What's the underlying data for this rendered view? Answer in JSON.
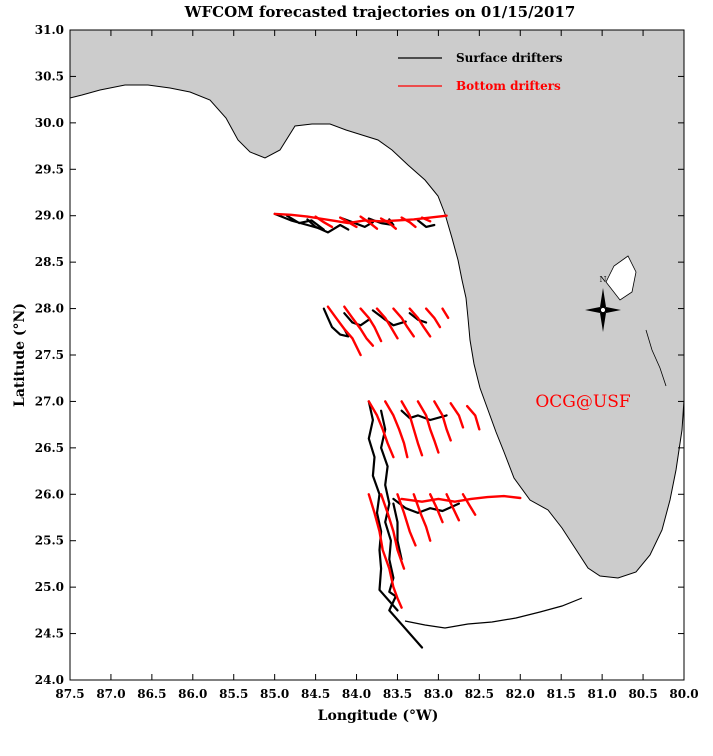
{
  "title": "WFCOM forecasted trajectories on 01/15/2017",
  "xlabel": "Longitude (°W)",
  "ylabel": "Latitude (°N)",
  "xlim": [
    87.5,
    80.0
  ],
  "ylim": [
    24.0,
    31.0
  ],
  "x_ticks": [
    "87.5",
    "87.0",
    "86.5",
    "86.0",
    "85.5",
    "85.0",
    "84.5",
    "84.0",
    "83.5",
    "83.0",
    "82.5",
    "82.0",
    "81.5",
    "81.0",
    "80.5",
    "80.0"
  ],
  "y_ticks": [
    "24.0",
    "24.5",
    "25.0",
    "25.5",
    "26.0",
    "26.5",
    "27.0",
    "27.5",
    "28.0",
    "28.5",
    "29.0",
    "29.5",
    "30.0",
    "30.5",
    "31.0"
  ],
  "legend": {
    "surface_label": "Surface drifters",
    "bottom_label": "Bottom drifters",
    "position": "top-right"
  },
  "credit": "OCG@USF",
  "compass_label": "N",
  "colors": {
    "surface": "#000000",
    "bottom": "#ff0000",
    "land": "#cccccc",
    "ocean": "#ffffff"
  },
  "chart_data": {
    "type": "map",
    "title": "WFCOM forecasted trajectories on 01/15/2017",
    "xlabel": "Longitude (°W)",
    "ylabel": "Latitude (°N)",
    "xlim": [
      87.5,
      80.0
    ],
    "ylim": [
      24.0,
      31.0
    ],
    "grid": false,
    "legend_position": "top-right",
    "series": [
      {
        "name": "Surface drifters",
        "color": "#000000",
        "tracks": [
          [
            [
              85.0,
              29.02
            ],
            [
              84.8,
              28.95
            ],
            [
              84.6,
              28.9
            ],
            [
              84.4,
              28.85
            ],
            [
              84.55,
              28.95
            ],
            [
              84.7,
              28.92
            ],
            [
              84.85,
              29.0
            ]
          ],
          [
            [
              84.6,
              28.96
            ],
            [
              84.5,
              28.88
            ],
            [
              84.35,
              28.82
            ],
            [
              84.2,
              28.9
            ],
            [
              84.1,
              28.85
            ]
          ],
          [
            [
              84.2,
              28.98
            ],
            [
              84.05,
              28.93
            ],
            [
              83.9,
              28.88
            ],
            [
              83.8,
              28.93
            ]
          ],
          [
            [
              83.85,
              28.97
            ],
            [
              83.7,
              28.92
            ],
            [
              83.55,
              28.9
            ],
            [
              83.6,
              28.96
            ]
          ],
          [
            [
              83.25,
              28.95
            ],
            [
              83.15,
              28.88
            ],
            [
              83.05,
              28.9
            ]
          ],
          [
            [
              84.4,
              28.0
            ],
            [
              84.35,
              27.9
            ],
            [
              84.3,
              27.8
            ],
            [
              84.2,
              27.72
            ],
            [
              84.1,
              27.7
            ],
            [
              84.15,
              27.78
            ]
          ],
          [
            [
              84.15,
              27.95
            ],
            [
              84.05,
              27.85
            ],
            [
              83.95,
              27.82
            ],
            [
              83.85,
              27.88
            ]
          ],
          [
            [
              83.8,
              27.98
            ],
            [
              83.65,
              27.88
            ],
            [
              83.55,
              27.82
            ],
            [
              83.4,
              27.86
            ]
          ],
          [
            [
              83.35,
              27.95
            ],
            [
              83.25,
              27.88
            ],
            [
              83.15,
              27.85
            ]
          ],
          [
            [
              83.85,
              27.0
            ],
            [
              83.8,
              26.8
            ],
            [
              83.85,
              26.6
            ],
            [
              83.78,
              26.4
            ],
            [
              83.8,
              26.2
            ],
            [
              83.72,
              26.0
            ],
            [
              83.75,
              25.8
            ],
            [
              83.7,
              25.6
            ],
            [
              83.72,
              25.4
            ],
            [
              83.7,
              25.2
            ],
            [
              83.72,
              24.97
            ],
            [
              83.5,
              24.75
            ]
          ],
          [
            [
              83.7,
              26.9
            ],
            [
              83.65,
              26.7
            ],
            [
              83.7,
              26.5
            ],
            [
              83.62,
              26.3
            ],
            [
              83.65,
              26.1
            ],
            [
              83.6,
              25.9
            ],
            [
              83.65,
              25.7
            ],
            [
              83.58,
              25.5
            ],
            [
              83.6,
              25.3
            ],
            [
              83.55,
              25.1
            ],
            [
              83.6,
              24.95
            ],
            [
              83.52,
              24.9
            ],
            [
              83.6,
              24.75
            ],
            [
              83.45,
              24.6
            ],
            [
              83.3,
              24.45
            ],
            [
              83.2,
              24.35
            ]
          ],
          [
            [
              83.45,
              26.9
            ],
            [
              83.35,
              26.82
            ],
            [
              83.25,
              26.85
            ],
            [
              83.1,
              26.8
            ],
            [
              82.9,
              26.85
            ]
          ],
          [
            [
              83.55,
              25.95
            ],
            [
              83.4,
              25.85
            ],
            [
              83.25,
              25.8
            ],
            [
              83.1,
              25.85
            ],
            [
              82.95,
              25.82
            ],
            [
              82.75,
              25.9
            ]
          ],
          [
            [
              83.55,
              25.9
            ],
            [
              83.5,
              25.7
            ],
            [
              83.5,
              25.5
            ],
            [
              83.45,
              25.3
            ]
          ]
        ]
      },
      {
        "name": "Bottom drifters",
        "color": "#ff0000",
        "tracks": [
          [
            [
              85.0,
              29.02
            ],
            [
              84.8,
              29.01
            ],
            [
              84.6,
              28.99
            ],
            [
              84.45,
              28.97
            ],
            [
              84.3,
              28.95
            ],
            [
              84.1,
              28.92
            ],
            [
              83.9,
              28.95
            ],
            [
              83.7,
              28.94
            ],
            [
              83.5,
              28.95
            ],
            [
              83.3,
              28.96
            ],
            [
              83.1,
              28.98
            ],
            [
              82.9,
              29.0
            ]
          ],
          [
            [
              84.5,
              28.99
            ],
            [
              84.4,
              28.93
            ],
            [
              84.3,
              28.88
            ]
          ],
          [
            [
              84.2,
              28.98
            ],
            [
              84.1,
              28.93
            ],
            [
              84.0,
              28.88
            ]
          ],
          [
            [
              83.95,
              28.99
            ],
            [
              83.85,
              28.93
            ],
            [
              83.75,
              28.86
            ]
          ],
          [
            [
              83.7,
              28.97
            ],
            [
              83.6,
              28.92
            ],
            [
              83.52,
              28.86
            ]
          ],
          [
            [
              83.45,
              28.98
            ],
            [
              83.35,
              28.93
            ],
            [
              83.28,
              28.88
            ]
          ],
          [
            [
              83.2,
              28.98
            ],
            [
              83.1,
              28.94
            ]
          ],
          [
            [
              84.35,
              28.02
            ],
            [
              84.25,
              27.9
            ],
            [
              84.15,
              27.78
            ],
            [
              84.05,
              27.68
            ],
            [
              83.95,
              27.5
            ]
          ],
          [
            [
              84.15,
              28.02
            ],
            [
              84.05,
              27.9
            ],
            [
              83.95,
              27.78
            ],
            [
              83.88,
              27.68
            ],
            [
              83.8,
              27.6
            ]
          ],
          [
            [
              83.95,
              28.0
            ],
            [
              83.85,
              27.9
            ],
            [
              83.78,
              27.8
            ],
            [
              83.7,
              27.65
            ]
          ],
          [
            [
              83.75,
              28.0
            ],
            [
              83.65,
              27.9
            ],
            [
              83.58,
              27.8
            ],
            [
              83.5,
              27.68
            ]
          ],
          [
            [
              83.55,
              28.0
            ],
            [
              83.45,
              27.9
            ],
            [
              83.38,
              27.8
            ],
            [
              83.3,
              27.7
            ]
          ],
          [
            [
              83.35,
              28.0
            ],
            [
              83.25,
              27.9
            ],
            [
              83.18,
              27.8
            ],
            [
              83.1,
              27.7
            ]
          ],
          [
            [
              83.15,
              28.0
            ],
            [
              83.05,
              27.9
            ],
            [
              82.98,
              27.8
            ]
          ],
          [
            [
              82.95,
              28.0
            ],
            [
              82.88,
              27.9
            ]
          ],
          [
            [
              83.85,
              27.0
            ],
            [
              83.75,
              26.85
            ],
            [
              83.68,
              26.7
            ],
            [
              83.62,
              26.55
            ],
            [
              83.55,
              26.4
            ]
          ],
          [
            [
              83.65,
              27.0
            ],
            [
              83.55,
              26.85
            ],
            [
              83.48,
              26.7
            ],
            [
              83.42,
              26.55
            ],
            [
              83.38,
              26.4
            ]
          ],
          [
            [
              83.45,
              27.0
            ],
            [
              83.35,
              26.85
            ],
            [
              83.3,
              26.7
            ],
            [
              83.25,
              26.55
            ],
            [
              83.2,
              26.42
            ]
          ],
          [
            [
              83.25,
              27.0
            ],
            [
              83.15,
              26.85
            ],
            [
              83.1,
              26.7
            ],
            [
              83.05,
              26.58
            ],
            [
              83.0,
              26.45
            ]
          ],
          [
            [
              83.05,
              27.0
            ],
            [
              82.95,
              26.85
            ],
            [
              82.9,
              26.7
            ],
            [
              82.85,
              26.58
            ]
          ],
          [
            [
              82.85,
              26.98
            ],
            [
              82.75,
              26.85
            ],
            [
              82.7,
              26.72
            ]
          ],
          [
            [
              82.65,
              26.95
            ],
            [
              82.55,
              26.85
            ],
            [
              82.5,
              26.7
            ]
          ],
          [
            [
              83.85,
              26.0
            ],
            [
              83.78,
              25.8
            ],
            [
              83.72,
              25.6
            ],
            [
              83.68,
              25.4
            ],
            [
              83.6,
              25.2
            ],
            [
              83.55,
              25.0
            ],
            [
              83.5,
              24.88
            ],
            [
              83.45,
              24.78
            ]
          ],
          [
            [
              83.7,
              26.0
            ],
            [
              83.62,
              25.8
            ],
            [
              83.55,
              25.6
            ],
            [
              83.5,
              25.4
            ],
            [
              83.42,
              25.2
            ]
          ],
          [
            [
              83.5,
              26.0
            ],
            [
              83.42,
              25.8
            ],
            [
              83.35,
              25.6
            ],
            [
              83.28,
              25.45
            ]
          ],
          [
            [
              83.3,
              26.0
            ],
            [
              83.22,
              25.8
            ],
            [
              83.15,
              25.65
            ],
            [
              83.1,
              25.5
            ]
          ],
          [
            [
              83.1,
              26.0
            ],
            [
              83.02,
              25.85
            ],
            [
              82.95,
              25.7
            ]
          ],
          [
            [
              82.9,
              26.0
            ],
            [
              82.82,
              25.85
            ],
            [
              82.75,
              25.72
            ]
          ],
          [
            [
              82.7,
              26.0
            ],
            [
              82.62,
              25.88
            ],
            [
              82.55,
              25.78
            ]
          ],
          [
            [
              83.45,
              25.95
            ],
            [
              83.2,
              25.92
            ],
            [
              83.0,
              25.95
            ],
            [
              82.8,
              25.92
            ],
            [
              82.6,
              25.95
            ],
            [
              82.4,
              25.97
            ],
            [
              82.2,
              25.98
            ],
            [
              82.0,
              25.96
            ]
          ]
        ]
      }
    ]
  }
}
